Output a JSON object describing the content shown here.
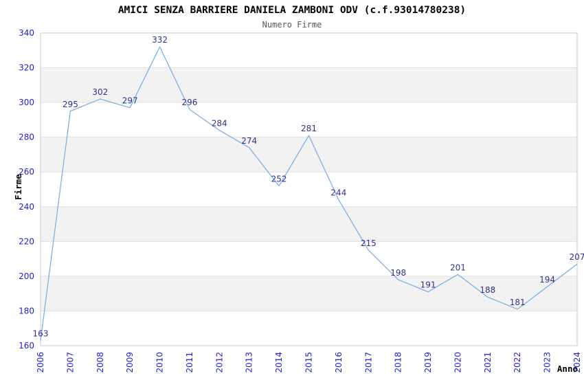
{
  "chart_data": {
    "type": "line",
    "title": "AMICI SENZA BARRIERE DANIELA ZAMBONI ODV (c.f.93014780238)",
    "subtitle": "Numero Firme",
    "xlabel": "Anno",
    "ylabel": "Firme",
    "x": [
      2006,
      2007,
      2008,
      2009,
      2010,
      2011,
      2012,
      2013,
      2014,
      2015,
      2016,
      2017,
      2018,
      2019,
      2020,
      2021,
      2022,
      2023,
      2024
    ],
    "values": [
      163,
      295,
      302,
      297,
      332,
      296,
      284,
      274,
      252,
      281,
      244,
      215,
      198,
      191,
      201,
      188,
      181,
      194,
      207
    ],
    "ylim": [
      160,
      340
    ],
    "ytick_step": 20,
    "yticks": [
      160,
      180,
      200,
      220,
      240,
      260,
      280,
      300,
      320,
      340
    ],
    "grid": "alternating horizontal gray bands with light gridlines every 20",
    "legend": "none",
    "data_labels": true
  },
  "style": {
    "line_color": "#7cb0e6",
    "tick_label_color": "#2222cc",
    "data_label_color": "#32328c",
    "band_color": "#f2f2f2",
    "gridline_color": "#e0e0e0",
    "border_color": "#c8c8c8",
    "title_color": "#000000",
    "subtitle_color": "#595959",
    "axis_label_color": "#000000",
    "background_color": "#ffffff"
  }
}
